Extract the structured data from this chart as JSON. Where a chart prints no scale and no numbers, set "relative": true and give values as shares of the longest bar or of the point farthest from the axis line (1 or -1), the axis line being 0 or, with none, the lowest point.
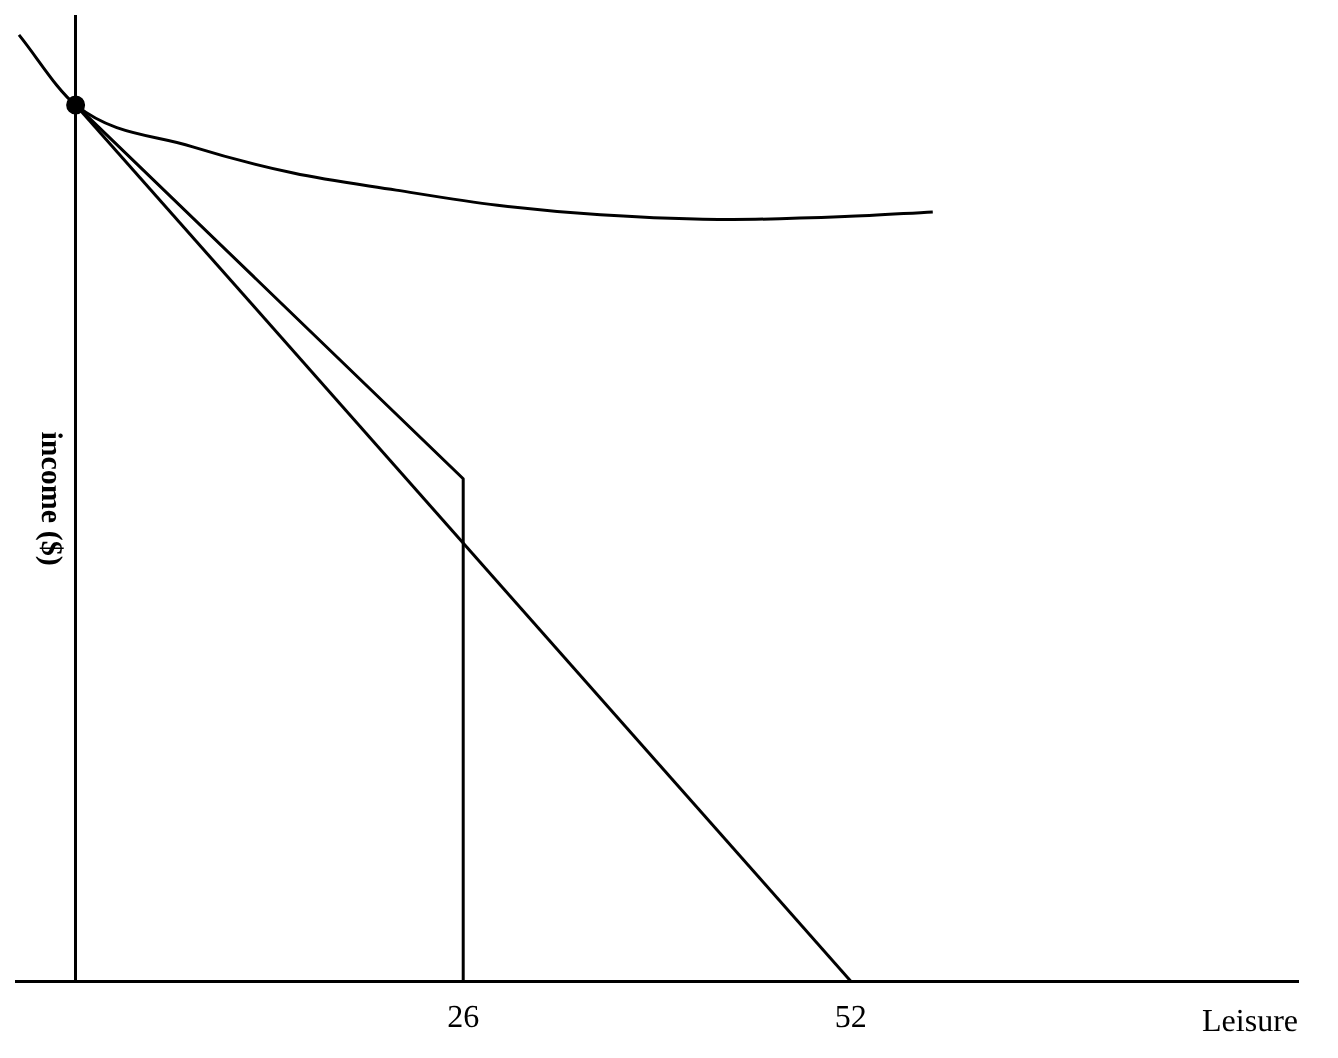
{
  "chart_data": {
    "type": "line",
    "xlabel": "Leisure",
    "ylabel": "income ($)",
    "relative": true,
    "xlim": [
      -4,
      82
    ],
    "xticks": [
      26,
      52
    ],
    "tick_labels": "x",
    "grid": false,
    "legend": false,
    "marker": "none",
    "line_style": "solid",
    "series": [
      {
        "color": "#000000",
        "x": [
          -3.8,
          0,
          7.8,
          14.6,
          21.5,
          28.3,
          35.2,
          44.1,
          51.6,
          57.5
        ],
        "values": [
          1.0,
          0.926,
          0.882,
          0.854,
          0.836,
          0.82,
          0.81,
          0.805,
          0.808,
          0.813
        ]
      },
      {
        "color": "#000000",
        "x": [
          0,
          52
        ],
        "values": [
          0.926,
          0
        ]
      },
      {
        "color": "#000000",
        "x": [
          0,
          26,
          26
        ],
        "values": [
          0.926,
          0.531,
          0
        ]
      },
      {
        "type": "scatter",
        "marker": "circle",
        "color": "#000000",
        "x": [
          0
        ],
        "values": [
          0.926
        ]
      }
    ]
  }
}
